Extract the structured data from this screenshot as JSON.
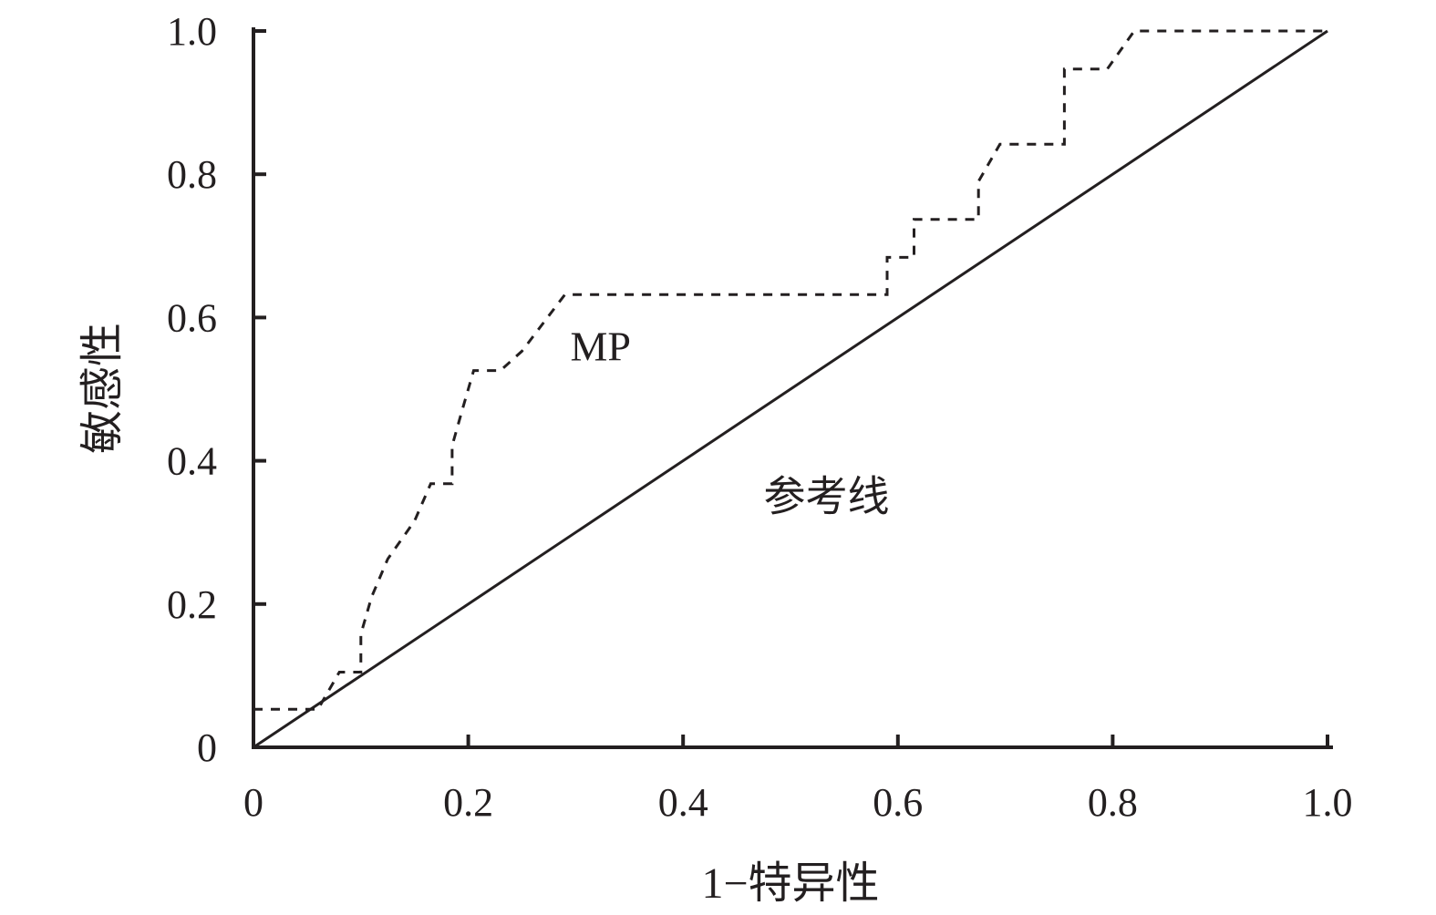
{
  "chart_data": {
    "type": "line",
    "title": "",
    "xlabel": "1−特异性",
    "ylabel": "敏感性",
    "xlim": [
      0,
      1
    ],
    "ylim": [
      0,
      1
    ],
    "x_ticks": [
      0,
      0.2,
      0.4,
      0.6,
      0.8,
      1.0
    ],
    "x_tick_labels": [
      "0",
      "0.2",
      "0.4",
      "0.6",
      "0.8",
      "1.0"
    ],
    "y_ticks": [
      0,
      0.2,
      0.4,
      0.6,
      0.8,
      1.0
    ],
    "y_tick_labels": [
      "0",
      "0.2",
      "0.4",
      "0.6",
      "0.8",
      "1.0"
    ],
    "grid": false,
    "legend": "none",
    "series": [
      {
        "name": "MP",
        "style": "dashed",
        "color": "#231f20",
        "x": [
          0,
          0.06,
          0.08,
          0.1,
          0.1,
          0.11,
          0.125,
          0.15,
          0.165,
          0.18,
          0.185,
          0.185,
          0.195,
          0.2,
          0.205,
          0.23,
          0.25,
          0.29,
          0.59,
          0.59,
          0.615,
          0.615,
          0.675,
          0.675,
          0.695,
          0.755,
          0.755,
          0.795,
          0.82,
          1.0
        ],
        "y": [
          0.053,
          0.053,
          0.105,
          0.105,
          0.158,
          0.21,
          0.263,
          0.316,
          0.368,
          0.368,
          0.368,
          0.421,
          0.474,
          0.5,
          0.526,
          0.526,
          0.553,
          0.632,
          0.632,
          0.684,
          0.684,
          0.737,
          0.737,
          0.79,
          0.842,
          0.842,
          0.947,
          0.947,
          1.0,
          1.0
        ]
      },
      {
        "name": "参考线",
        "style": "solid",
        "color": "#231f20",
        "x": [
          0,
          1.0
        ],
        "y": [
          0,
          1.0
        ]
      }
    ],
    "annotations": [
      {
        "text": "MP",
        "x": 0.295,
        "y": 0.54
      },
      {
        "text": "参考线",
        "x": 0.475,
        "y": 0.33
      }
    ]
  }
}
